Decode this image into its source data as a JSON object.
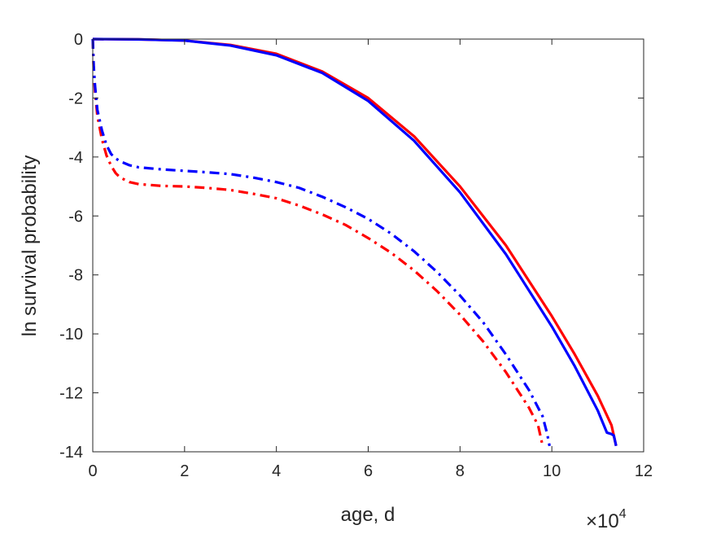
{
  "chart_data": {
    "type": "line",
    "title": "",
    "xlabel": "age, d",
    "ylabel": "ln survival probability",
    "x_exponent_label": "×10",
    "x_exponent_power": "4",
    "xlim": [
      0,
      120000
    ],
    "ylim": [
      -14,
      0
    ],
    "xticks": [
      0,
      20000,
      40000,
      60000,
      80000,
      100000,
      120000
    ],
    "xtick_labels": [
      "0",
      "2",
      "4",
      "6",
      "8",
      "10",
      "12"
    ],
    "yticks": [
      -14,
      -12,
      -10,
      -8,
      -6,
      -4,
      -2,
      0
    ],
    "ytick_labels": [
      "-14",
      "-12",
      "-10",
      "-8",
      "-6",
      "-4",
      "-2",
      "0"
    ],
    "grid": false,
    "legend": "none",
    "series": [
      {
        "color": "#ff0000",
        "style": "solid",
        "x": [
          0,
          10000,
          20000,
          30000,
          40000,
          50000,
          60000,
          70000,
          80000,
          90000,
          100000,
          105000,
          110000,
          113000,
          114000
        ],
        "y": [
          0,
          -0.01,
          -0.05,
          -0.2,
          -0.5,
          -1.1,
          -2.0,
          -3.3,
          -5.0,
          -7.0,
          -9.4,
          -10.7,
          -12.1,
          -13.1,
          -13.8
        ]
      },
      {
        "color": "#0000ff",
        "style": "solid",
        "x": [
          0,
          10000,
          20000,
          30000,
          40000,
          50000,
          60000,
          70000,
          80000,
          90000,
          100000,
          105000,
          110000,
          112000,
          113000,
          113500,
          114000
        ],
        "y": [
          0,
          -0.01,
          -0.05,
          -0.22,
          -0.55,
          -1.15,
          -2.1,
          -3.45,
          -5.2,
          -7.3,
          -9.75,
          -11.1,
          -12.6,
          -13.35,
          -13.4,
          -13.45,
          -13.8
        ]
      },
      {
        "color": "#ff0000",
        "style": "dashdot",
        "x": [
          0,
          200,
          500,
          1000,
          2000,
          3000,
          4000,
          5000,
          6000,
          8000,
          10000,
          15000,
          20000,
          25000,
          30000,
          35000,
          40000,
          45000,
          50000,
          55000,
          60000,
          65000,
          70000,
          75000,
          80000,
          85000,
          90000,
          95000,
          97000,
          98000
        ],
        "y": [
          0,
          -1.0,
          -1.8,
          -2.6,
          -3.4,
          -3.95,
          -4.3,
          -4.55,
          -4.7,
          -4.85,
          -4.92,
          -4.98,
          -5.0,
          -5.05,
          -5.12,
          -5.25,
          -5.4,
          -5.65,
          -5.95,
          -6.3,
          -6.75,
          -7.25,
          -7.85,
          -8.55,
          -9.35,
          -10.25,
          -11.3,
          -12.5,
          -13.1,
          -13.8
        ]
      },
      {
        "color": "#0000ff",
        "style": "dashdot",
        "x": [
          0,
          200,
          500,
          1000,
          2000,
          3000,
          4000,
          5000,
          6000,
          8000,
          10000,
          15000,
          20000,
          25000,
          30000,
          35000,
          40000,
          45000,
          50000,
          55000,
          60000,
          65000,
          70000,
          75000,
          80000,
          85000,
          90000,
          95000,
          98000,
          99000,
          99500
        ],
        "y": [
          0,
          -0.9,
          -1.6,
          -2.4,
          -3.1,
          -3.6,
          -3.9,
          -4.05,
          -4.15,
          -4.28,
          -4.35,
          -4.42,
          -4.47,
          -4.52,
          -4.58,
          -4.7,
          -4.85,
          -5.05,
          -5.35,
          -5.7,
          -6.1,
          -6.6,
          -7.2,
          -7.9,
          -8.7,
          -9.6,
          -10.7,
          -11.9,
          -12.8,
          -13.4,
          -13.8
        ]
      }
    ]
  }
}
